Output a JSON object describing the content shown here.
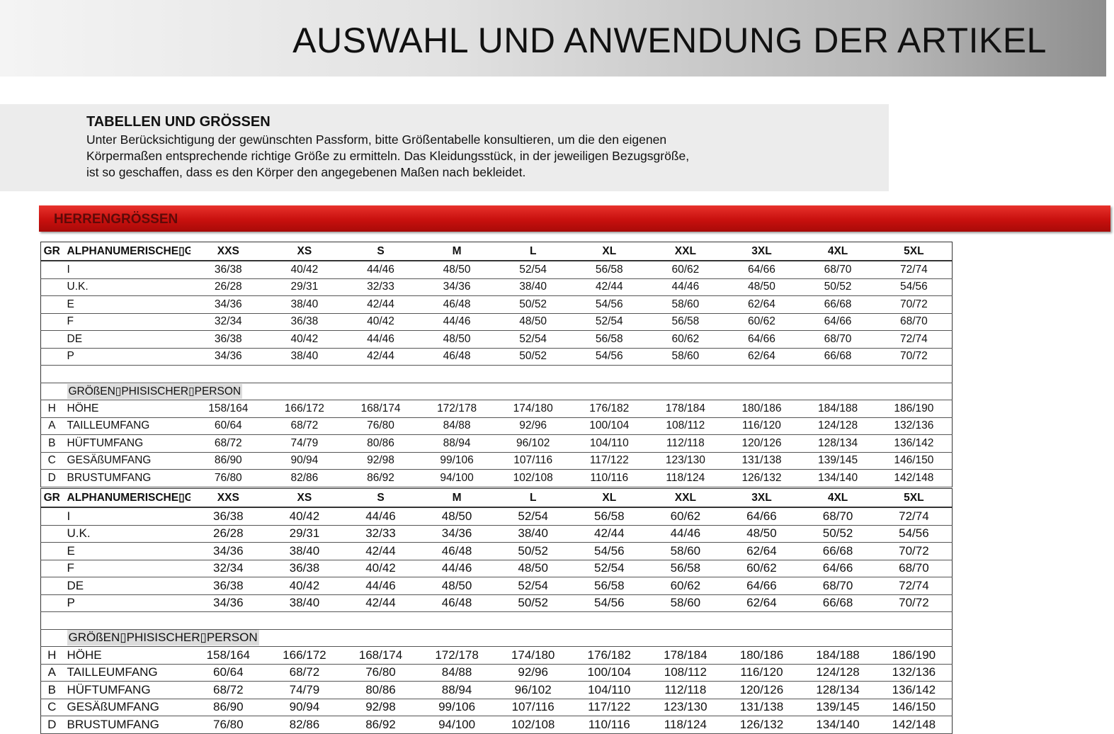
{
  "header": {
    "title": "AUSWAHL UND ANWENDUNG DER ARTIKEL"
  },
  "intro": {
    "title": "TABELLEN UND GRÖSSEN",
    "lines": [
      "Unter Berücksichtigung der gewünschten Passform, bitte Größentabelle konsultieren, um die den eigenen",
      "Körpermaßen entsprechende richtige Größe zu ermitteln. Das Kleidungsstück, in der jeweiligen Bezugsgröße,",
      "ist so geschaffen, dass es den Körper den angegebenen Maßen nach bekleidet."
    ]
  },
  "section": {
    "title": "HERRENGRÖSSEN"
  },
  "tables": [
    {
      "header": [
        "GR",
        "ALPHANUMERISCHE▯G",
        "XXS",
        "XS",
        "S",
        "M",
        "L",
        "XL",
        "XXL",
        "3XL",
        "4XL",
        "5XL"
      ],
      "size_rows": [
        {
          "label": "I",
          "values": [
            "36/38",
            "40/42",
            "44/46",
            "48/50",
            "52/54",
            "56/58",
            "60/62",
            "64/66",
            "68/70",
            "72/74"
          ]
        },
        {
          "label": "U.K.",
          "values": [
            "26/28",
            "29/31",
            "32/33",
            "34/36",
            "38/40",
            "42/44",
            "44/46",
            "48/50",
            "50/52",
            "54/56"
          ]
        },
        {
          "label": "E",
          "values": [
            "34/36",
            "38/40",
            "42/44",
            "46/48",
            "50/52",
            "54/56",
            "58/60",
            "62/64",
            "66/68",
            "70/72"
          ]
        },
        {
          "label": "F",
          "values": [
            "32/34",
            "36/38",
            "40/42",
            "44/46",
            "48/50",
            "52/54",
            "56/58",
            "60/62",
            "64/66",
            "68/70"
          ]
        },
        {
          "label": "DE",
          "values": [
            "36/38",
            "40/42",
            "44/46",
            "48/50",
            "52/54",
            "56/58",
            "60/62",
            "64/66",
            "68/70",
            "72/74"
          ]
        },
        {
          "label": "P",
          "values": [
            "34/36",
            "38/40",
            "42/44",
            "46/48",
            "50/52",
            "54/56",
            "58/60",
            "62/64",
            "66/68",
            "70/72"
          ]
        }
      ],
      "subheading": "GRÖßEN▯PHISISCHER▯PERSON",
      "body_rows": [
        {
          "code": "H",
          "label": "HÖHE",
          "values": [
            "158/164",
            "166/172",
            "168/174",
            "172/178",
            "174/180",
            "176/182",
            "178/184",
            "180/186",
            "184/188",
            "186/190"
          ]
        },
        {
          "code": "A",
          "label": "TAILLEUMFANG",
          "values": [
            "60/64",
            "68/72",
            "76/80",
            "84/88",
            "92/96",
            "100/104",
            "108/112",
            "116/120",
            "124/128",
            "132/136"
          ]
        },
        {
          "code": "B",
          "label": "HÜFTUMFANG",
          "values": [
            "68/72",
            "74/79",
            "80/86",
            "88/94",
            "96/102",
            "104/110",
            "112/118",
            "120/126",
            "128/134",
            "136/142"
          ]
        },
        {
          "code": "C",
          "label": "GESÄßUMFANG",
          "values": [
            "86/90",
            "90/94",
            "92/98",
            "99/106",
            "107/116",
            "117/122",
            "123/130",
            "131/138",
            "139/145",
            "146/150"
          ]
        },
        {
          "code": "D",
          "label": "BRUSTUMFANG",
          "values": [
            "76/80",
            "82/86",
            "86/92",
            "94/100",
            "102/108",
            "110/116",
            "118/124",
            "126/132",
            "134/140",
            "142/148"
          ]
        }
      ]
    },
    {
      "header": [
        "GR",
        "ALPHANUMERISCHE▯G",
        "XXS",
        "XS",
        "S",
        "M",
        "L",
        "XL",
        "XXL",
        "3XL",
        "4XL",
        "5XL"
      ],
      "size_rows": [
        {
          "label": "I",
          "values": [
            "36/38",
            "40/42",
            "44/46",
            "48/50",
            "52/54",
            "56/58",
            "60/62",
            "64/66",
            "68/70",
            "72/74"
          ]
        },
        {
          "label": "U.K.",
          "values": [
            "26/28",
            "29/31",
            "32/33",
            "34/36",
            "38/40",
            "42/44",
            "44/46",
            "48/50",
            "50/52",
            "54/56"
          ]
        },
        {
          "label": "E",
          "values": [
            "34/36",
            "38/40",
            "42/44",
            "46/48",
            "50/52",
            "54/56",
            "58/60",
            "62/64",
            "66/68",
            "70/72"
          ]
        },
        {
          "label": "F",
          "values": [
            "32/34",
            "36/38",
            "40/42",
            "44/46",
            "48/50",
            "52/54",
            "56/58",
            "60/62",
            "64/66",
            "68/70"
          ]
        },
        {
          "label": "DE",
          "values": [
            "36/38",
            "40/42",
            "44/46",
            "48/50",
            "52/54",
            "56/58",
            "60/62",
            "64/66",
            "68/70",
            "72/74"
          ]
        },
        {
          "label": "P",
          "values": [
            "34/36",
            "38/40",
            "42/44",
            "46/48",
            "50/52",
            "54/56",
            "58/60",
            "62/64",
            "66/68",
            "70/72"
          ]
        }
      ],
      "subheading": "GRÖßEN▯PHISISCHER▯PERSON",
      "body_rows": [
        {
          "code": "H",
          "label": "HÖHE",
          "values": [
            "158/164",
            "166/172",
            "168/174",
            "172/178",
            "174/180",
            "176/182",
            "178/184",
            "180/186",
            "184/188",
            "186/190"
          ]
        },
        {
          "code": "A",
          "label": "TAILLEUMFANG",
          "values": [
            "60/64",
            "68/72",
            "76/80",
            "84/88",
            "92/96",
            "100/104",
            "108/112",
            "116/120",
            "124/128",
            "132/136"
          ]
        },
        {
          "code": "B",
          "label": "HÜFTUMFANG",
          "values": [
            "68/72",
            "74/79",
            "80/86",
            "88/94",
            "96/102",
            "104/110",
            "112/118",
            "120/126",
            "128/134",
            "136/142"
          ]
        },
        {
          "code": "C",
          "label": "GESÄßUMFANG",
          "values": [
            "86/90",
            "90/94",
            "92/98",
            "99/106",
            "107/116",
            "117/122",
            "123/130",
            "131/138",
            "139/145",
            "146/150"
          ]
        },
        {
          "code": "D",
          "label": "BRUSTUMFANG",
          "values": [
            "76/80",
            "82/86",
            "86/92",
            "94/100",
            "102/108",
            "110/116",
            "118/124",
            "126/132",
            "134/140",
            "142/148"
          ]
        }
      ]
    }
  ]
}
